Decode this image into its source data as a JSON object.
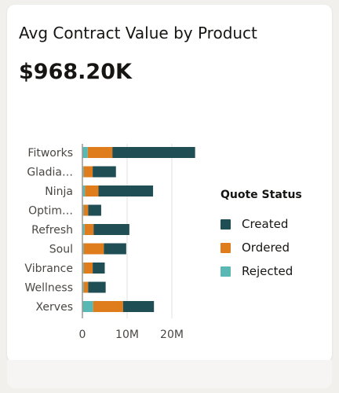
{
  "card": {
    "title": "Avg Contract Value by Product",
    "kpi_value": "$968.20K"
  },
  "colors": {
    "Created": "#1f4f55",
    "Ordered": "#df7c1c",
    "Rejected": "#5ab8b4",
    "axis": "#161513",
    "grid": "#e4e2de",
    "label": "#4a4743"
  },
  "legend": {
    "title": "Quote Status",
    "items": [
      {
        "label": "Created",
        "color": "#1f4f55"
      },
      {
        "label": "Ordered",
        "color": "#df7c1c"
      },
      {
        "label": "Rejected",
        "color": "#5ab8b4"
      }
    ]
  },
  "chart_data": {
    "type": "bar",
    "orientation": "horizontal",
    "stacked": true,
    "categories": [
      "Fitworks",
      "Gladia…",
      "Ninja",
      "Optim…",
      "Refresh",
      "Soul",
      "Vibrance",
      "Wellness",
      "Xerves"
    ],
    "series": [
      {
        "name": "Rejected",
        "values": [
          1.2,
          0.3,
          0.6,
          0.3,
          0.5,
          0.3,
          0.3,
          0.3,
          2.4
        ]
      },
      {
        "name": "Ordered",
        "values": [
          5.5,
          2.0,
          3.0,
          1.0,
          2.0,
          4.5,
          2.0,
          1.0,
          6.7
        ]
      },
      {
        "name": "Created",
        "values": [
          18.5,
          5.2,
          12.2,
          2.9,
          8.0,
          5.0,
          2.7,
          3.9,
          6.9
        ]
      }
    ],
    "xlim": [
      0,
      25
    ],
    "xticks": [
      0,
      10,
      20
    ],
    "xtick_labels": [
      "0",
      "10M",
      "20M"
    ],
    "grid": true,
    "legend_position": "right"
  }
}
